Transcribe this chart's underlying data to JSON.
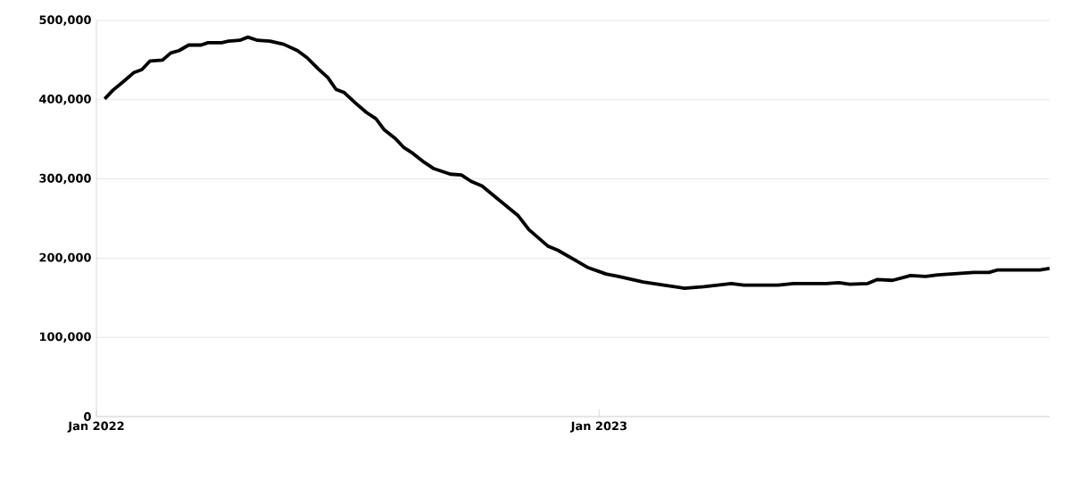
{
  "chart_data": {
    "type": "line",
    "x": [
      "2022-01-07",
      "2022-01-13",
      "2022-01-20",
      "2022-01-28",
      "2022-02-03",
      "2022-02-09",
      "2022-02-18",
      "2022-02-24",
      "2022-03-02",
      "2022-03-09",
      "2022-03-18",
      "2022-03-23",
      "2022-04-02",
      "2022-04-07",
      "2022-04-15",
      "2022-04-21",
      "2022-04-28",
      "2022-05-07",
      "2022-05-17",
      "2022-05-27",
      "2022-06-03",
      "2022-06-11",
      "2022-06-18",
      "2022-06-24",
      "2022-06-30",
      "2022-07-08",
      "2022-07-16",
      "2022-07-23",
      "2022-07-29",
      "2022-08-06",
      "2022-08-12",
      "2022-08-19",
      "2022-08-27",
      "2022-09-03",
      "2022-09-15",
      "2022-09-23",
      "2022-09-30",
      "2022-10-08",
      "2022-10-20",
      "2022-11-03",
      "2022-11-11",
      "2022-11-25",
      "2022-12-02",
      "2022-12-16",
      "2022-12-24",
      "2023-01-06",
      "2023-01-15",
      "2023-02-02",
      "2023-02-17",
      "2023-03-04",
      "2023-03-18",
      "2023-04-07",
      "2023-04-16",
      "2023-05-11",
      "2023-05-22",
      "2023-06-15",
      "2023-06-24",
      "2023-07-02",
      "2023-07-15",
      "2023-07-22",
      "2023-08-02",
      "2023-08-15",
      "2023-08-26",
      "2023-09-04",
      "2023-09-30",
      "2023-10-11",
      "2023-10-17",
      "2023-11-17",
      "2023-11-24"
    ],
    "series": [
      {
        "color": "#000000",
        "values": [
          401000,
          412000,
          422000,
          434000,
          438000,
          449000,
          450000,
          459000,
          462000,
          469000,
          469000,
          472000,
          472000,
          474000,
          475000,
          479000,
          475000,
          474000,
          470000,
          462000,
          453000,
          439000,
          428000,
          413000,
          409000,
          396000,
          384000,
          376000,
          362000,
          351000,
          340000,
          332000,
          321000,
          313000,
          306000,
          305000,
          297000,
          291000,
          274000,
          254000,
          236000,
          215000,
          210000,
          196000,
          188000,
          180000,
          177000,
          170000,
          166000,
          162000,
          164000,
          168000,
          166000,
          166000,
          168000,
          168000,
          169000,
          167000,
          168000,
          173000,
          172000,
          178000,
          177000,
          179000,
          182000,
          182000,
          185000,
          185000,
          187000
        ]
      }
    ],
    "xlim": [
      "2022-01-01",
      "2023-11-24"
    ],
    "xticks": [
      {
        "value": "2022-01-01",
        "label": "Jan 2022"
      },
      {
        "value": "2023-01-01",
        "label": "Jan 2023"
      }
    ],
    "ylim": [
      0,
      500000
    ],
    "yticks": [
      {
        "value": 0,
        "label": "0"
      },
      {
        "value": 100000,
        "label": "100,000"
      },
      {
        "value": 200000,
        "label": "200,000"
      },
      {
        "value": 300000,
        "label": "300,000"
      },
      {
        "value": 400000,
        "label": "400,000"
      },
      {
        "value": 500000,
        "label": "500,000"
      }
    ],
    "grid": "y"
  }
}
